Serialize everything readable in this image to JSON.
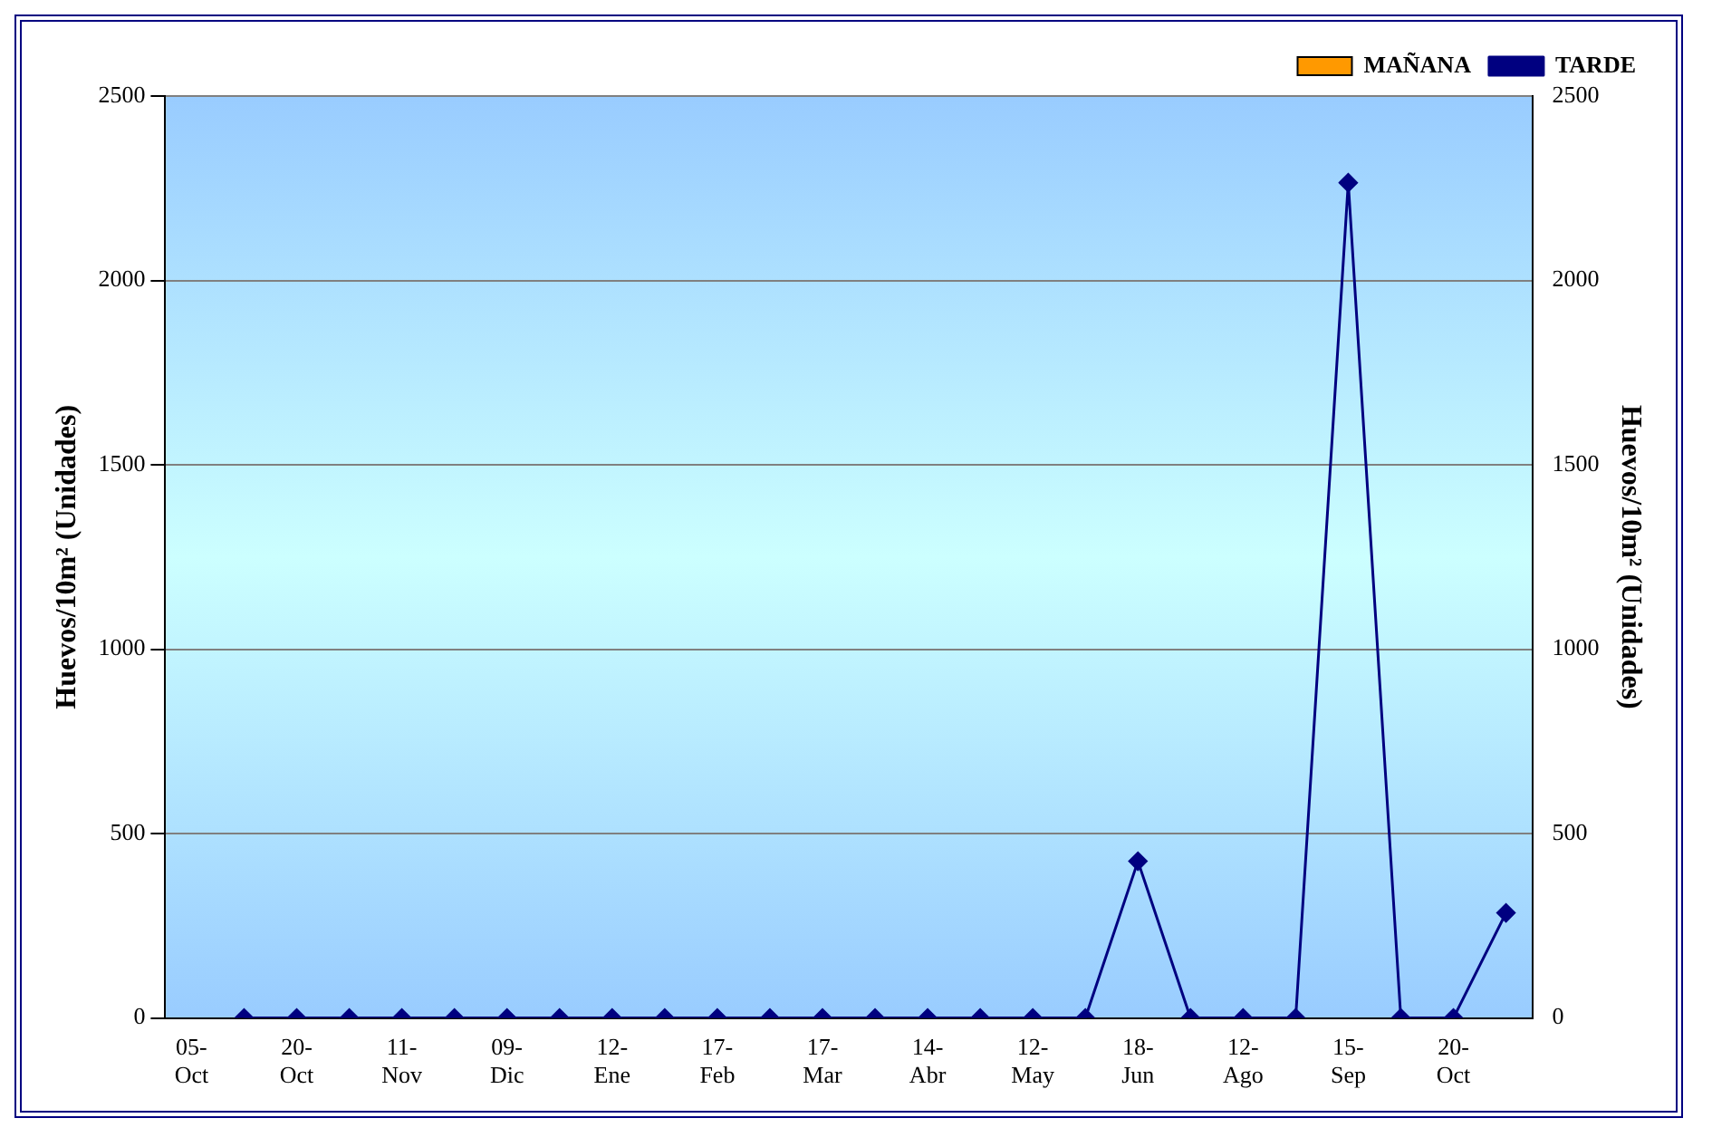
{
  "chart_data": {
    "type": "bar",
    "categories": [
      "05-\nOct",
      null,
      "20-\nOct",
      null,
      "11-\nNov",
      null,
      "09-\nDic",
      null,
      "12-\nEne",
      null,
      "17-\nFeb",
      null,
      "17-\nMar",
      null,
      "14-\nAbr",
      null,
      "12-\nMay",
      null,
      "18-\nJun",
      null,
      "12-\nAgo",
      null,
      "15-\nSep",
      null,
      "20-\nOct",
      null
    ],
    "series": [
      {
        "name": "MAÑANA",
        "type": "bar",
        "color": "#ff9900",
        "values": [
          null,
          0,
          0,
          0,
          0,
          0,
          0,
          0,
          0,
          0,
          0,
          0,
          0,
          0,
          0,
          0,
          0,
          0,
          0,
          0,
          0,
          0,
          0,
          0,
          0,
          0
        ]
      },
      {
        "name": "TARDE",
        "type": "line",
        "color": "#000080",
        "values": [
          null,
          0,
          0,
          0,
          0,
          0,
          0,
          0,
          0,
          0,
          0,
          0,
          0,
          0,
          0,
          0,
          0,
          0,
          425,
          0,
          0,
          0,
          2265,
          0,
          0,
          285
        ]
      }
    ],
    "ylabel": "Huevos/10m² (Unidades)",
    "y2label": "Huevos/10m² (Unidades)",
    "ylim": [
      0,
      2500
    ],
    "yticks": [
      0,
      500,
      1000,
      1500,
      2000,
      2500
    ],
    "y2lim": [
      0,
      2500
    ],
    "y2ticks": [
      0,
      500,
      1000,
      1500,
      2000,
      2500
    ],
    "grid": "y",
    "legend": "top right",
    "marker": "diamond",
    "line_style": "solid"
  }
}
